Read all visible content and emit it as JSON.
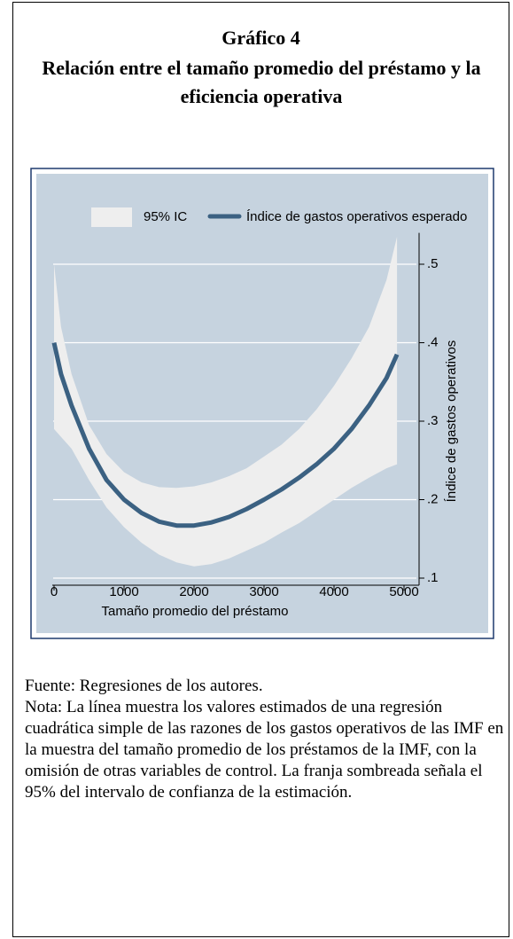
{
  "chart_data": {
    "type": "line",
    "label": "Gráfico 4",
    "title": "Relación entre el tamaño promedio del préstamo y la eficiencia operativa",
    "x_label": "Tamaño promedio del préstamo",
    "y_label": "Índice de gastos operativos",
    "x": [
      0,
      100,
      250,
      500,
      750,
      1000,
      1250,
      1500,
      1750,
      2000,
      2250,
      2500,
      2750,
      3000,
      3250,
      3500,
      3750,
      4000,
      4250,
      4500,
      4750,
      4900
    ],
    "series": [
      {
        "name": "Índice de gastos operativos esperado",
        "color": "#3b6182",
        "values": [
          0.4,
          0.36,
          0.32,
          0.265,
          0.225,
          0.2,
          0.183,
          0.172,
          0.167,
          0.167,
          0.171,
          0.178,
          0.188,
          0.2,
          0.213,
          0.228,
          0.245,
          0.265,
          0.29,
          0.32,
          0.355,
          0.385
        ]
      }
    ],
    "band": {
      "name": "95% IC",
      "color": "#eeeeee",
      "upper": [
        0.5,
        0.42,
        0.36,
        0.295,
        0.258,
        0.235,
        0.222,
        0.216,
        0.215,
        0.217,
        0.222,
        0.23,
        0.24,
        0.255,
        0.27,
        0.29,
        0.315,
        0.345,
        0.38,
        0.42,
        0.48,
        0.535
      ],
      "lower": [
        0.29,
        0.28,
        0.265,
        0.225,
        0.19,
        0.165,
        0.145,
        0.13,
        0.12,
        0.115,
        0.118,
        0.125,
        0.135,
        0.145,
        0.158,
        0.17,
        0.185,
        0.2,
        0.215,
        0.228,
        0.24,
        0.245
      ]
    },
    "xlim": [
      0,
      5000
    ],
    "xticks": [
      0,
      1000,
      2000,
      3000,
      4000,
      5000
    ],
    "ylim": [
      0.1,
      0.54
    ],
    "yticks": [
      {
        "value": 0.1,
        "label": ".1"
      },
      {
        "value": 0.2,
        "label": ".2"
      },
      {
        "value": 0.3,
        "label": ".3"
      },
      {
        "value": 0.4,
        "label": ".4"
      },
      {
        "value": 0.5,
        "label": ".5"
      }
    ],
    "grid": true,
    "background": "#c6d3df"
  },
  "notes": {
    "source": "Fuente: Regresiones de los autores.",
    "note": "Nota: La línea muestra los valores estimados de una regresión cuadrática simple de las razones de los gastos operativos de las IMF en la muestra del tamaño promedio de los préstamos de la IMF, con la omisión de otras variables de control. La franja sombreada señala el 95% del intervalo de confianza de la estimación."
  }
}
